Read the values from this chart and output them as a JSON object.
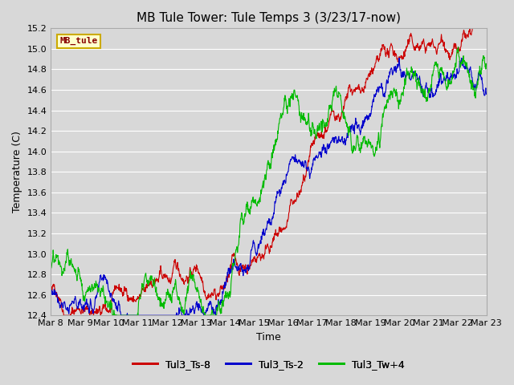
{
  "title": "MB Tule Tower: Tule Temps 3 (3/23/17-now)",
  "xlabel": "Time",
  "ylabel": "Temperature (C)",
  "ylim": [
    12.4,
    15.2
  ],
  "background_color": "#d8d8d8",
  "plot_bg_color": "#d8d8d8",
  "grid_color": "#ffffff",
  "legend_label": "MB_tule",
  "legend_text_color": "#880000",
  "legend_bg": "#ffffcc",
  "legend_border": "#ccaa00",
  "series": [
    {
      "label": "Tul3_Ts-8",
      "color": "#cc0000"
    },
    {
      "label": "Tul3_Ts-2",
      "color": "#0000cc"
    },
    {
      "label": "Tul3_Tw+4",
      "color": "#00bb00"
    }
  ],
  "x_tick_labels": [
    "Mar 8",
    "Mar 9",
    "Mar 10",
    "Mar 11",
    "Mar 12",
    "Mar 13",
    "Mar 14",
    "Mar 15",
    "Mar 16",
    "Mar 17",
    "Mar 18",
    "Mar 19",
    "Mar 20",
    "Mar 21",
    "Mar 22",
    "Mar 23"
  ],
  "yticks": [
    12.4,
    12.6,
    12.8,
    13.0,
    13.2,
    13.4,
    13.6,
    13.8,
    14.0,
    14.2,
    14.4,
    14.6,
    14.8,
    15.0,
    15.2
  ],
  "tick_fontsize": 8,
  "title_fontsize": 11,
  "axis_label_fontsize": 9
}
